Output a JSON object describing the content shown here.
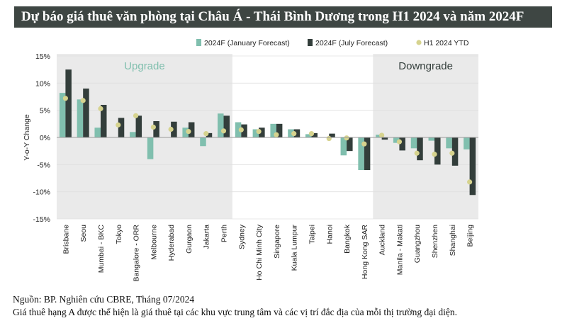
{
  "title": "Dự báo giá thuê văn phòng tại Châu Á - Thái Bình Dương trong H1 2024 và năm 2024F",
  "source_note": "Nguồn: BP. Nghiên cứu CBRE, Tháng 07/2024",
  "caption_note": "Giá thuê hạng A được thể hiện là giá thuê tại các khu vực trung tâm và các vị trí đắc địa của mỗi thị trường đại diện.",
  "colors": {
    "title_bg": "#3e4643",
    "january": "#80bfae",
    "july": "#333e3b",
    "ytd": "#d6d38e",
    "shade": "#eaeaea",
    "upgrade_text": "#80bfae",
    "downgrade_text": "#333e3b"
  },
  "chart_data": {
    "type": "bar",
    "ylabel": "Y-o-Y Change",
    "ylim": [
      -15,
      15
    ],
    "ytick_values": [
      15,
      10,
      5,
      0,
      -5,
      -10,
      -15
    ],
    "ytick_labels": [
      "15%",
      "10%",
      "5%",
      "0%",
      "-5%",
      "-10%",
      "-15%"
    ],
    "legend_position": "top-right",
    "categories": [
      "Brisbane",
      "Seou",
      "Mumbai - BKC",
      "Tokyo",
      "Bangalore - ORR",
      "Melbourne",
      "Hyderabad",
      "Gurgaon",
      "Jakarta",
      "Perth",
      "Sydney",
      "Ho Chi Minh City",
      "Singapore",
      "Kuala Lumpur",
      "Taipei",
      "Hanoi",
      "Bangkok",
      "Hong Kong SAR",
      "Auckland",
      "Manila - Makati",
      "Guangzhou",
      "Shenzhen",
      "Shanghai",
      "Beijing"
    ],
    "series": [
      {
        "name": "2024F (January Forecast)",
        "kind": "bar",
        "values": [
          8.2,
          7,
          1.8,
          0,
          1,
          -4,
          0,
          1.8,
          -1.6,
          4.4,
          2.8,
          1.5,
          2.5,
          1.5,
          0.6,
          0,
          -3.3,
          -6,
          0.5,
          -1,
          -2,
          -0.6,
          -2,
          -2.2
        ]
      },
      {
        "name": "2024F (July Forecast)",
        "kind": "bar",
        "values": [
          12.5,
          9,
          6,
          3.6,
          4,
          3,
          2.9,
          2.8,
          0.8,
          4,
          2.4,
          1.8,
          2.5,
          1.5,
          0.8,
          0.7,
          -2.5,
          -6,
          -0.4,
          -2.4,
          -4.2,
          -5,
          -5.2,
          -10.6
        ]
      },
      {
        "name": "H1 2024 YTD",
        "kind": "point",
        "values": [
          7.2,
          6.8,
          5.3,
          2.3,
          4,
          1.9,
          1.5,
          1.1,
          0.7,
          1.2,
          1.4,
          1.1,
          0.5,
          0.7,
          0.7,
          -0.2,
          -0.1,
          -1.2,
          0.4,
          -0.8,
          -2.9,
          -3.1,
          -2.9,
          -8.2
        ]
      }
    ],
    "regions": [
      {
        "label": "Upgrade",
        "from": "Brisbane",
        "to": "Perth"
      },
      {
        "label": "Downgrade",
        "from": "Auckland",
        "to": "Beijing"
      }
    ]
  }
}
